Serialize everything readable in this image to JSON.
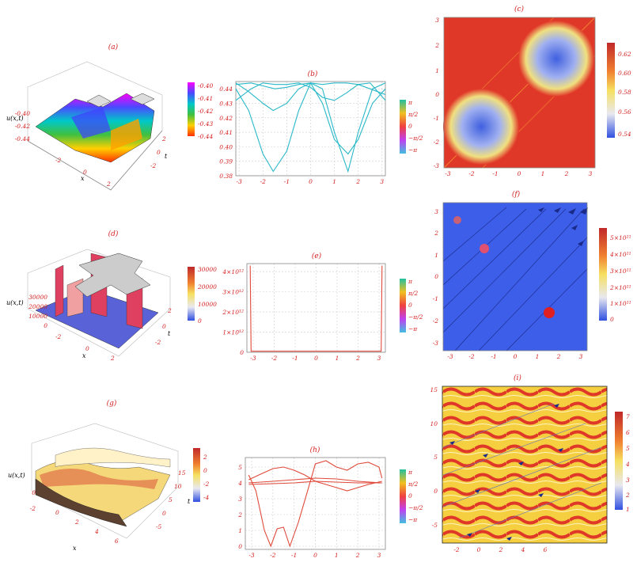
{
  "panels": {
    "a": {
      "label": "(a)",
      "zlabel": "u(x,t)",
      "xlabel": "x",
      "tlabel": "t",
      "zticks": [
        "-0.40",
        "-0.42",
        "-0.44"
      ],
      "xticks": [
        "-2",
        "0",
        "2"
      ],
      "tticks": [
        "2",
        "0",
        "-2"
      ],
      "colorbar": [
        "-0.40",
        "-0.41",
        "-0.42",
        "-0.43",
        "-0.44"
      ]
    },
    "c": {
      "label": "(c)",
      "colorbar": [
        "0.62",
        "0.60",
        "0.58",
        "0.56",
        "0.54"
      ]
    },
    "d": {
      "label": "(d)",
      "zlabel": "u(x,t)",
      "xlabel": "x",
      "tlabel": "t",
      "zticks": [
        "30000",
        "20000",
        "10000",
        "0"
      ],
      "xticks": [
        "-2",
        "0",
        "2"
      ],
      "tticks": [
        "2",
        "0",
        "-2"
      ],
      "colorbar": [
        "30000",
        "20000",
        "10000",
        "0"
      ]
    },
    "f": {
      "label": "(f)",
      "colorbar": [
        "5×10¹¹",
        "4×10¹¹",
        "3×10¹¹",
        "2×10¹¹",
        "1×10¹¹",
        "0"
      ]
    },
    "g": {
      "label": "(g)",
      "zlabel": "u(x,t)",
      "xlabel": "x",
      "tlabel": "t",
      "zticks": [
        "0",
        "-2"
      ],
      "xticks": [
        "0",
        "2",
        "4",
        "6"
      ],
      "tticks": [
        "15",
        "10",
        "5",
        "0",
        "-5"
      ],
      "colorbar": [
        "2",
        "0",
        "-2",
        "-4"
      ]
    },
    "i": {
      "label": "(i)",
      "colorbar": [
        "7",
        "6",
        "5",
        "4",
        "3",
        "2",
        "1"
      ]
    }
  },
  "phase_legend": [
    "π",
    "π/2",
    "0",
    "−π/2",
    "−π"
  ],
  "chart_data": [
    {
      "id": "b",
      "type": "line",
      "title": "(b)",
      "xlim": [
        -3.14,
        3.14
      ],
      "ylim": [
        0.38,
        0.445
      ],
      "xticks": [
        -3,
        -2,
        -1,
        0,
        1,
        2,
        3
      ],
      "yticks": [
        0.38,
        0.39,
        0.4,
        0.41,
        0.42,
        0.43,
        0.44
      ],
      "series": [
        {
          "x": [
            -3.14,
            -2.6,
            -2.0,
            -1.57,
            -1.0,
            -0.5,
            0,
            0.5,
            1.0,
            1.57,
            2.0,
            2.6,
            3.14
          ],
          "y": [
            0.44,
            0.425,
            0.395,
            0.383,
            0.397,
            0.425,
            0.444,
            0.43,
            0.405,
            0.395,
            0.405,
            0.43,
            0.44
          ]
        },
        {
          "x": [
            -3.14,
            -2.6,
            -2.0,
            -1.57,
            -1.0,
            -0.5,
            0,
            0.5,
            1.0,
            1.57,
            2.0,
            2.6,
            3.14
          ],
          "y": [
            0.444,
            0.438,
            0.43,
            0.425,
            0.43,
            0.44,
            0.444,
            0.44,
            0.41,
            0.383,
            0.41,
            0.44,
            0.444
          ]
        },
        {
          "x": [
            -3.14,
            -2.5,
            -2.0,
            -1.5,
            -1.0,
            -0.5,
            0,
            0.5,
            1.0,
            1.5,
            2.0,
            2.5,
            3.14
          ],
          "y": [
            0.432,
            0.44,
            0.444,
            0.443,
            0.443,
            0.444,
            0.441,
            0.434,
            0.432,
            0.437,
            0.443,
            0.444,
            0.432
          ]
        },
        {
          "x": [
            -3.14,
            -2.5,
            -2.0,
            -1.5,
            -1.0,
            -0.5,
            0,
            0.5,
            1.0,
            1.5,
            2.0,
            2.5,
            3.14
          ],
          "y": [
            0.443,
            0.444,
            0.442,
            0.44,
            0.441,
            0.443,
            0.444,
            0.443,
            0.444,
            0.444,
            0.443,
            0.44,
            0.436
          ]
        }
      ]
    },
    {
      "id": "e",
      "type": "line",
      "title": "(e)",
      "xlim": [
        -3.3,
        3.3
      ],
      "ylim": [
        0,
        4400000000000.0
      ],
      "xticks": [
        -3,
        -2,
        -1,
        0,
        1,
        2,
        3
      ],
      "yticks": [
        0,
        1000000000000.0,
        2000000000000.0,
        3000000000000.0,
        4000000000000.0
      ],
      "yticklabels": [
        "0",
        "1×10¹²",
        "2×10¹²",
        "3×10¹²",
        "4×10¹²"
      ],
      "series": [
        {
          "x": [
            -3.14,
            -3.1,
            -3.0,
            0,
            3.0,
            3.1,
            3.14
          ],
          "y": [
            4300000000000.0,
            50000000000.0,
            50000000000.0,
            50000000000.0,
            50000000000.0,
            50000000000.0,
            4300000000000.0
          ]
        }
      ]
    },
    {
      "id": "h",
      "type": "line",
      "title": "(h)",
      "xlim": [
        -3.3,
        3.3
      ],
      "ylim": [
        -0.2,
        5.6
      ],
      "xticks": [
        -3,
        -2,
        -1,
        0,
        1,
        2,
        3
      ],
      "yticks": [
        0,
        1,
        2,
        3,
        4,
        5
      ],
      "series": [
        {
          "x": [
            -3.14,
            -2.8,
            -2.4,
            -2.1,
            -1.8,
            -1.5,
            -1.2,
            -0.8,
            -0.3,
            0,
            0.5,
            1.0,
            1.5,
            2.0,
            2.5,
            3.0,
            3.14
          ],
          "y": [
            4.5,
            3.5,
            1.0,
            0.0,
            1.1,
            1.2,
            0.0,
            1.5,
            3.8,
            5.2,
            5.4,
            5.0,
            4.8,
            5.2,
            5.3,
            5.0,
            4.3
          ]
        },
        {
          "x": [
            -3.14,
            -2.5,
            -2.0,
            -1.5,
            -1.0,
            -0.5,
            0,
            0.5,
            1.0,
            1.5,
            2.0,
            2.5,
            3.14
          ],
          "y": [
            4.2,
            4.6,
            4.9,
            5.0,
            4.8,
            4.5,
            4.1,
            3.9,
            3.7,
            3.5,
            3.7,
            3.9,
            4.1
          ]
        },
        {
          "x": [
            -3.14,
            -2.0,
            -1.0,
            0,
            1.0,
            2.0,
            3.14
          ],
          "y": [
            4.0,
            4.1,
            4.2,
            4.3,
            4.25,
            4.1,
            4.0
          ]
        },
        {
          "x": [
            -3.14,
            -2.0,
            -1.0,
            0,
            1.0,
            2.0,
            3.14
          ],
          "y": [
            3.9,
            3.95,
            4.0,
            4.1,
            4.05,
            4.0,
            4.0
          ]
        }
      ]
    }
  ]
}
